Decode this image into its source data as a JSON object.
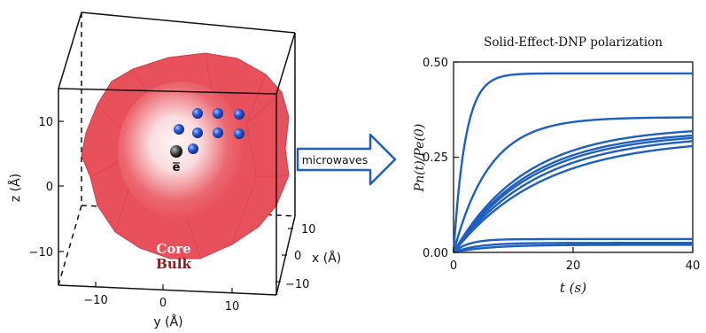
{
  "left_panel": {
    "axes": {
      "z_label": "z (Å)",
      "y_label": "y (Å)",
      "x_label": "x (Å)",
      "z_ticks": [
        "10",
        "0",
        "−10"
      ],
      "y_ticks": [
        "−10",
        "0",
        "10"
      ],
      "x_ticks": [
        "10",
        "0",
        "−10"
      ]
    },
    "electron_label": "e",
    "core_label": "Core",
    "bulk_label": "Bulk",
    "colors": {
      "bulk": "#e8505b",
      "core": "#ffffff",
      "nuclei": "#1e46c8",
      "bulk_text": "#8b1a1a"
    }
  },
  "arrow": {
    "label": "microwaves",
    "color": "#1f5fbf"
  },
  "chart": {
    "title": "Solid-Effect-DNP polarization",
    "xlabel": "t (s)",
    "ylabel": "Pn(t)/Pe(0)",
    "x_ticks": [
      "0",
      "20",
      "40"
    ],
    "y_ticks": [
      "0.00",
      "0.25",
      "0.50"
    ]
  },
  "chart_data": {
    "type": "line",
    "title": "Solid-Effect-DNP polarization",
    "xlabel": "t (s)",
    "ylabel": "Pn(t)/Pe(0)",
    "xlim": [
      0,
      40
    ],
    "ylim": [
      0,
      0.5
    ],
    "color": "#1f5fbf",
    "series": [
      {
        "plateau": 0.47,
        "tau": 2.0
      },
      {
        "plateau": 0.355,
        "tau": 6.0
      },
      {
        "plateau": 0.33,
        "tau": 12.0
      },
      {
        "plateau": 0.32,
        "tau": 12.5
      },
      {
        "plateau": 0.315,
        "tau": 13.0
      },
      {
        "plateau": 0.31,
        "tau": 14.0
      },
      {
        "plateau": 0.3,
        "tau": 15.0
      },
      {
        "plateau": 0.035,
        "tau": 2.5
      },
      {
        "plateau": 0.025,
        "tau": 4.0
      },
      {
        "plateau": 0.02,
        "tau": 6.0
      }
    ]
  }
}
